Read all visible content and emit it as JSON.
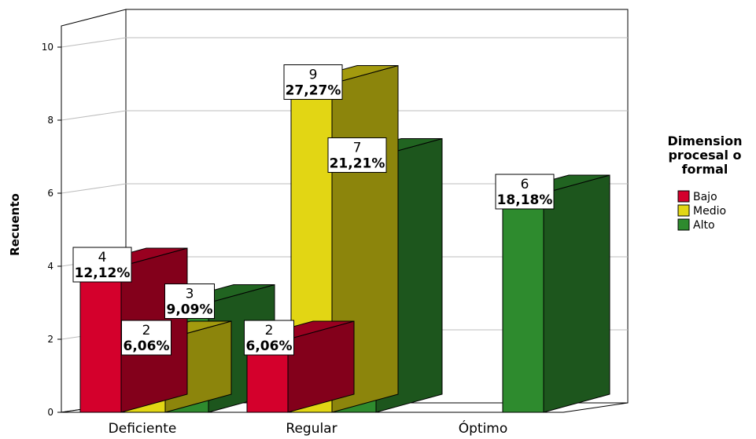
{
  "chart_data": {
    "type": "bar",
    "style": "3d-clustered",
    "ylabel": "Recuento",
    "xlabel": "",
    "ylim": [
      0,
      10
    ],
    "yticks": [
      0,
      2,
      4,
      6,
      8,
      10
    ],
    "grid": true,
    "categories": [
      "Deficiente",
      "Regular",
      "Óptimo"
    ],
    "legend": {
      "title": [
        "Dimension",
        "procesal o",
        "formal"
      ],
      "position": "right"
    },
    "series": [
      {
        "name": "Bajo",
        "color": "#d4002c",
        "values": [
          4,
          2,
          null
        ],
        "labels": [
          [
            "4",
            "12,12%"
          ],
          [
            "2",
            "6,06%"
          ],
          null
        ]
      },
      {
        "name": "Medio",
        "color": "#e2d614",
        "values": [
          2,
          9,
          null
        ],
        "labels": [
          [
            "2",
            "6,06%"
          ],
          [
            "9",
            "27,27%"
          ],
          null
        ]
      },
      {
        "name": "Alto",
        "color": "#2e8b2e",
        "values": [
          3,
          7,
          6
        ],
        "labels": [
          [
            "3",
            "9,09%"
          ],
          [
            "7",
            "21,21%"
          ],
          [
            "6",
            "18,18%"
          ]
        ]
      }
    ]
  }
}
